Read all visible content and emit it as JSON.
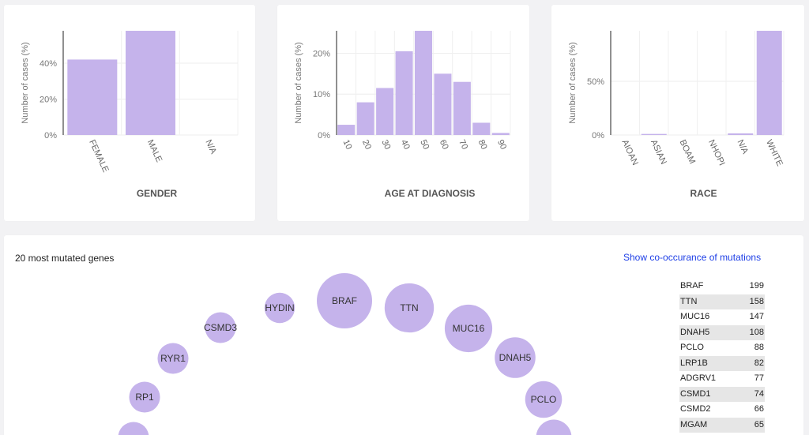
{
  "chart_data": [
    {
      "type": "bar",
      "xlabel": "GENDER",
      "ylabel": "Number of cases (%)",
      "categories": [
        "FEMALE",
        "MALE",
        "N/A"
      ],
      "values": [
        42,
        58,
        0
      ],
      "ylim": [
        0,
        58
      ],
      "yticks": [
        0,
        20,
        40
      ],
      "ytick_labels": [
        "0%",
        "20%",
        "40%"
      ],
      "grid": true,
      "color": "#c5b3eb"
    },
    {
      "type": "bar",
      "xlabel": "AGE AT DIAGNOSIS",
      "ylabel": "Number of cases (%)",
      "categories": [
        "10",
        "20",
        "30",
        "40",
        "50",
        "60",
        "70",
        "80",
        "90"
      ],
      "values": [
        2.5,
        8,
        11.5,
        20.5,
        25.5,
        15,
        13,
        3,
        0.5
      ],
      "ylim": [
        0,
        25.5
      ],
      "yticks": [
        0,
        10,
        20
      ],
      "ytick_labels": [
        "0%",
        "10%",
        "20%"
      ],
      "grid": true,
      "color": "#c5b3eb"
    },
    {
      "type": "bar",
      "xlabel": "RACE",
      "ylabel": "Number of cases (%)",
      "categories": [
        "AIOAN",
        "ASIAN",
        "BOAM",
        "NHOPI",
        "N/A",
        "WHITE"
      ],
      "values": [
        0,
        1,
        0,
        0,
        1.5,
        97
      ],
      "ylim": [
        0,
        97
      ],
      "yticks": [
        0,
        50
      ],
      "ytick_labels": [
        "0%",
        "50%"
      ],
      "grid": true,
      "color": "#c5b3eb"
    }
  ],
  "genes_panel": {
    "title": "20 most mutated genes",
    "link_label": "Show co-occurance of mutations",
    "genes": [
      {
        "name": "BRAF",
        "count": "199"
      },
      {
        "name": "TTN",
        "count": "158"
      },
      {
        "name": "MUC16",
        "count": "147"
      },
      {
        "name": "DNAH5",
        "count": "108"
      },
      {
        "name": "PCLO",
        "count": "88"
      },
      {
        "name": "LRP1B",
        "count": "82"
      },
      {
        "name": "ADGRV1",
        "count": "77"
      },
      {
        "name": "CSMD1",
        "count": "74"
      },
      {
        "name": "CSMD2",
        "count": "66"
      },
      {
        "name": "MGAM",
        "count": "65"
      }
    ],
    "bubbles": [
      {
        "label": "BRAF",
        "value": 199
      },
      {
        "label": "TTN",
        "value": 158
      },
      {
        "label": "MUC16",
        "value": 147
      },
      {
        "label": "DNAH5",
        "value": 108
      },
      {
        "label": "PCLO",
        "value": 88
      },
      {
        "label": "",
        "value": 82
      },
      {
        "label": "HYDIN",
        "value": 60
      },
      {
        "label": "CSMD3",
        "value": 62
      },
      {
        "label": "RYR1",
        "value": 62
      },
      {
        "label": "RP1",
        "value": 62
      },
      {
        "label": "",
        "value": 62
      }
    ],
    "bubble_color": "#c5b3eb"
  }
}
